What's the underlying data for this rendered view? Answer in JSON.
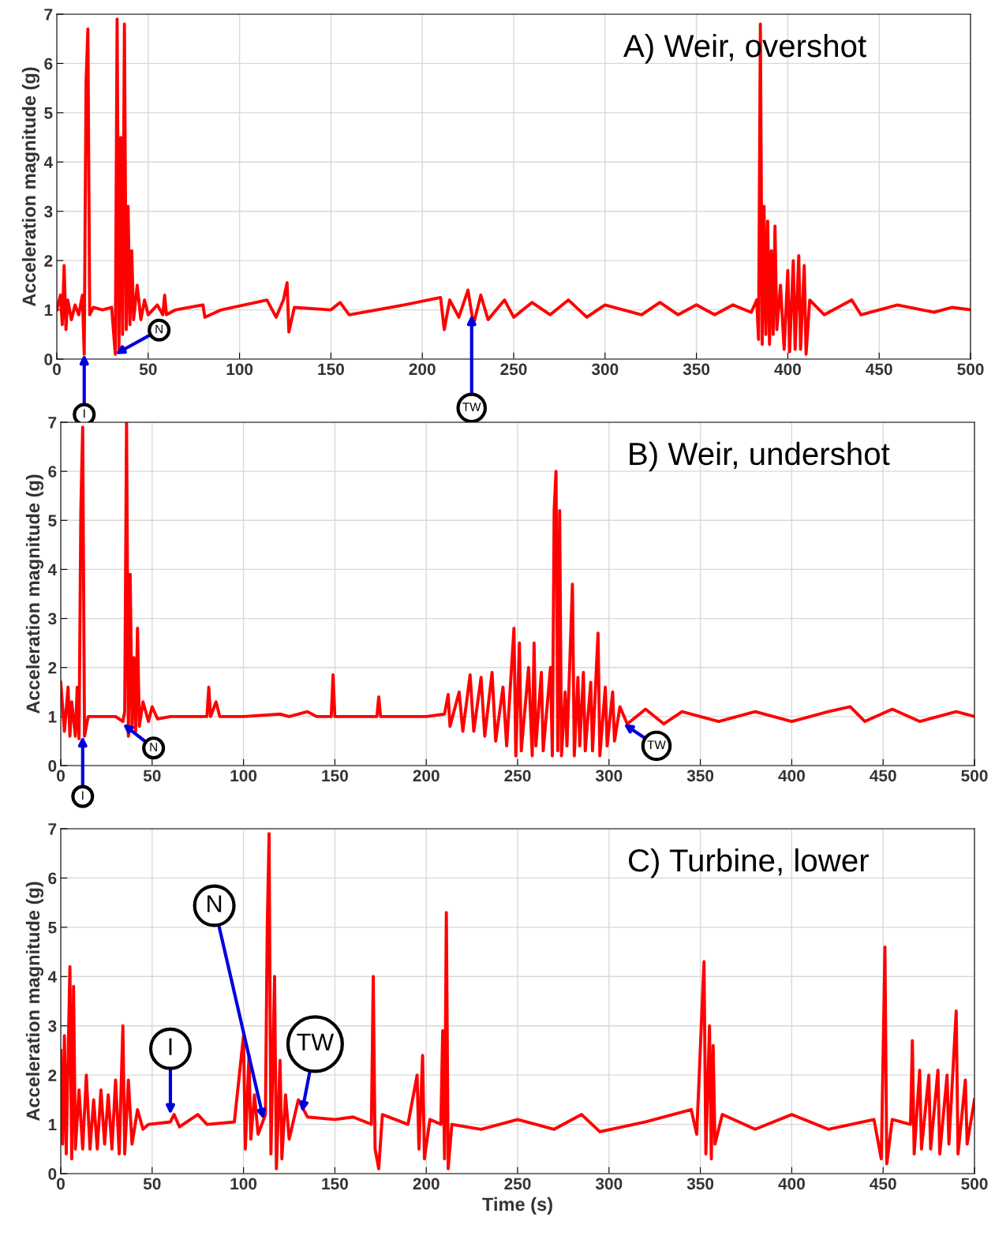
{
  "chart_data": [
    {
      "type": "line",
      "title": "A) Weir, overshot",
      "ylabel": "Acceleration magnitude (g)",
      "xlim": [
        0,
        500
      ],
      "ylim": [
        0,
        7
      ],
      "xticks": [
        0,
        50,
        100,
        150,
        200,
        250,
        300,
        350,
        400,
        450,
        500
      ],
      "yticks": [
        0,
        1,
        2,
        3,
        4,
        5,
        6,
        7
      ],
      "grid": true,
      "legend": false,
      "marker": "none",
      "line_style": "solid",
      "series": [
        {
          "color": "#ff0000",
          "x": [
            0,
            2,
            3,
            4,
            5,
            6,
            8,
            10,
            12,
            14,
            15,
            16,
            17,
            18,
            20,
            25,
            30,
            32,
            33,
            34,
            35,
            36,
            37,
            38,
            39,
            40,
            41,
            42,
            44,
            46,
            48,
            50,
            55,
            58,
            59,
            60,
            65,
            80,
            81,
            90,
            115,
            120,
            124,
            126,
            127,
            130,
            150,
            155,
            160,
            175,
            190,
            210,
            212,
            215,
            220,
            225,
            228,
            232,
            236,
            245,
            250,
            260,
            270,
            280,
            290,
            300,
            320,
            330,
            340,
            350,
            360,
            370,
            380,
            383,
            384,
            385,
            386,
            387,
            388,
            389,
            390,
            391,
            392,
            393,
            394,
            396,
            398,
            400,
            401,
            403,
            404,
            406,
            407,
            409,
            410,
            412,
            420,
            435,
            440,
            460,
            480,
            490,
            500
          ],
          "values": [
            1,
            1.3,
            0.7,
            1.9,
            0.6,
            1.2,
            0.8,
            1.1,
            0.9,
            1.3,
            0.1,
            5.6,
            6.7,
            0.9,
            1.05,
            1,
            1.05,
            0.1,
            6.9,
            0.2,
            4.5,
            0.5,
            6.8,
            0.6,
            3.1,
            0.7,
            2.2,
            0.8,
            1.5,
            0.8,
            1.2,
            0.9,
            1.1,
            0.9,
            1.3,
            0.9,
            1.0,
            1.1,
            0.85,
            1.0,
            1.2,
            0.85,
            1.2,
            1.55,
            0.55,
            1.05,
            1,
            1.15,
            0.9,
            1.0,
            1.1,
            1.25,
            0.6,
            1.2,
            0.85,
            1.4,
            0.7,
            1.3,
            0.8,
            1.2,
            0.85,
            1.15,
            0.9,
            1.2,
            0.85,
            1.1,
            0.9,
            1.15,
            0.9,
            1.1,
            0.9,
            1.1,
            0.95,
            1.2,
            0.4,
            6.8,
            0.3,
            3.1,
            0.5,
            2.8,
            0.3,
            2.2,
            0.5,
            2.7,
            0.6,
            1.5,
            0.2,
            1.8,
            0.15,
            2.0,
            0.2,
            2.1,
            0.2,
            1.9,
            0.1,
            1.2,
            0.9,
            1.2,
            0.9,
            1.1,
            0.95,
            1.05,
            1.0
          ]
        }
      ],
      "annotations": [
        {
          "text": "I",
          "x": 15,
          "y": 0.1
        },
        {
          "text": "N",
          "x": 32,
          "y": 0.1
        },
        {
          "text": "TW",
          "x": 227,
          "y": 0.9
        }
      ]
    },
    {
      "type": "line",
      "title": "B) Weir, undershot",
      "ylabel": "Acceleration magnitude (g)",
      "xlim": [
        0,
        500
      ],
      "ylim": [
        0,
        7
      ],
      "xticks": [
        0,
        50,
        100,
        150,
        200,
        250,
        300,
        350,
        400,
        450,
        500
      ],
      "yticks": [
        0,
        1,
        2,
        3,
        4,
        5,
        6,
        7
      ],
      "grid": true,
      "legend": false,
      "marker": "none",
      "line_style": "solid",
      "series": [
        {
          "color": "#ff0000",
          "x": [
            0,
            2,
            4,
            5,
            6,
            8,
            9,
            10,
            11,
            12,
            13,
            15,
            20,
            30,
            34,
            35,
            36,
            37,
            38,
            39,
            40,
            41,
            42,
            43,
            45,
            48,
            50,
            53,
            60,
            80,
            81,
            82,
            85,
            87,
            100,
            120,
            125,
            135,
            140,
            148,
            149,
            150,
            160,
            173,
            174,
            175,
            200,
            210,
            212,
            213,
            218,
            220,
            224,
            226,
            230,
            232,
            236,
            238,
            242,
            244,
            248,
            249,
            251,
            252,
            256,
            258,
            259,
            260,
            263,
            264,
            268,
            269,
            270,
            271,
            272,
            273,
            274,
            276,
            277,
            280,
            281,
            283,
            284,
            286,
            287,
            290,
            291,
            294,
            295,
            298,
            299,
            302,
            303,
            306,
            310,
            320,
            330,
            340,
            360,
            380,
            400,
            420,
            432,
            440,
            455,
            470,
            490,
            500
          ],
          "values": [
            1.7,
            0.7,
            1.6,
            0.6,
            1.3,
            0.6,
            1.6,
            0.55,
            5.2,
            6.9,
            0.6,
            1,
            1.0,
            1.0,
            0.9,
            1.1,
            7.0,
            0.6,
            3.9,
            0.8,
            2.2,
            0.7,
            2.8,
            0.8,
            1.3,
            0.9,
            1.2,
            0.95,
            1,
            1,
            1.6,
            1.0,
            1.3,
            1.0,
            1.0,
            1.05,
            1.0,
            1.1,
            1,
            1,
            1.85,
            1.0,
            1.0,
            1.0,
            1.4,
            1.0,
            1.0,
            1.05,
            1.45,
            0.8,
            1.5,
            0.7,
            1.85,
            0.7,
            1.8,
            0.6,
            1.9,
            0.5,
            1.6,
            0.4,
            2.8,
            0.2,
            2.5,
            0.3,
            2.0,
            0.2,
            2.5,
            0.4,
            1.9,
            0.3,
            2.0,
            0.2,
            5.2,
            6.0,
            0.3,
            5.2,
            0.2,
            1.5,
            0.4,
            3.7,
            0.2,
            1.8,
            0.4,
            1.9,
            0.3,
            1.7,
            0.3,
            2.7,
            0.2,
            1.6,
            0.4,
            1.5,
            0.5,
            1.2,
            0.85,
            1.15,
            0.85,
            1.1,
            0.9,
            1.1,
            0.9,
            1.1,
            1.2,
            0.9,
            1.15,
            0.9,
            1.1,
            1.0
          ]
        }
      ],
      "annotations": [
        {
          "text": "I",
          "x": 12,
          "y": 0.6
        },
        {
          "text": "N",
          "x": 34,
          "y": 0.85
        },
        {
          "text": "TW",
          "x": 308,
          "y": 0.85
        }
      ]
    },
    {
      "type": "line",
      "title": "C) Turbine, lower",
      "xlabel": "Time (s)",
      "ylabel": "Acceleration magnitude (g)",
      "xlim": [
        0,
        500
      ],
      "ylim": [
        0,
        7
      ],
      "xticks": [
        0,
        50,
        100,
        150,
        200,
        250,
        300,
        350,
        400,
        450,
        500
      ],
      "yticks": [
        0,
        1,
        2,
        3,
        4,
        5,
        6,
        7
      ],
      "grid": true,
      "legend": false,
      "marker": "none",
      "line_style": "solid",
      "series": [
        {
          "color": "#ff0000",
          "x": [
            0,
            1,
            2,
            3,
            5,
            6,
            7,
            8,
            10,
            12,
            14,
            16,
            18,
            20,
            22,
            24,
            26,
            28,
            30,
            32,
            34,
            35,
            37,
            39,
            42,
            45,
            48,
            60,
            62,
            65,
            75,
            80,
            95,
            100,
            101,
            103,
            104,
            106,
            108,
            112,
            113,
            114,
            115,
            117,
            118,
            120,
            121,
            123,
            125,
            130,
            135,
            150,
            160,
            170,
            171,
            172,
            174,
            176,
            190,
            195,
            196,
            198,
            199,
            202,
            208,
            209,
            210,
            211,
            212,
            214,
            230,
            250,
            270,
            285,
            295,
            320,
            345,
            348,
            352,
            353,
            355,
            356,
            357,
            358,
            362,
            380,
            400,
            420,
            445,
            449,
            450,
            451,
            452,
            455,
            465,
            466,
            467,
            470,
            471,
            475,
            476,
            480,
            481,
            485,
            486,
            490,
            491,
            495,
            496,
            500
          ],
          "values": [
            2.5,
            0.6,
            2.8,
            0.4,
            4.2,
            0.3,
            3.8,
            0.5,
            1.7,
            0.5,
            2.0,
            0.5,
            1.5,
            0.5,
            1.7,
            0.6,
            1.6,
            0.5,
            1.9,
            0.4,
            3.0,
            0.4,
            1.9,
            0.6,
            1.3,
            0.9,
            1.0,
            1.05,
            1.2,
            0.95,
            1.2,
            1.0,
            1.05,
            2.8,
            0.5,
            2.4,
            0.7,
            1.6,
            0.8,
            1.2,
            5.0,
            6.9,
            0.4,
            4.0,
            0.1,
            2.3,
            0.3,
            1.6,
            0.7,
            1.5,
            1.15,
            1.1,
            1.15,
            1.0,
            4.0,
            0.5,
            0.1,
            1.2,
            1.0,
            2.0,
            0.5,
            2.4,
            0.3,
            1.1,
            1.0,
            2.9,
            0.3,
            5.3,
            0.1,
            1.0,
            0.9,
            1.1,
            0.9,
            1.2,
            0.85,
            1.05,
            1.3,
            0.8,
            4.3,
            0.4,
            3.0,
            0.3,
            2.6,
            0.6,
            1.2,
            0.9,
            1.2,
            0.9,
            1.1,
            0.3,
            2.4,
            4.6,
            0.2,
            1.1,
            1.0,
            2.7,
            0.4,
            2.1,
            0.5,
            2.0,
            0.5,
            2.1,
            0.4,
            2.0,
            0.6,
            3.3,
            0.4,
            1.9,
            0.6,
            1.5
          ]
        }
      ],
      "annotations": [
        {
          "text": "I",
          "x": 60,
          "y": 1.2
        },
        {
          "text": "N",
          "x": 111,
          "y": 1.1
        },
        {
          "text": "TW",
          "x": 132,
          "y": 1.25
        }
      ]
    }
  ]
}
